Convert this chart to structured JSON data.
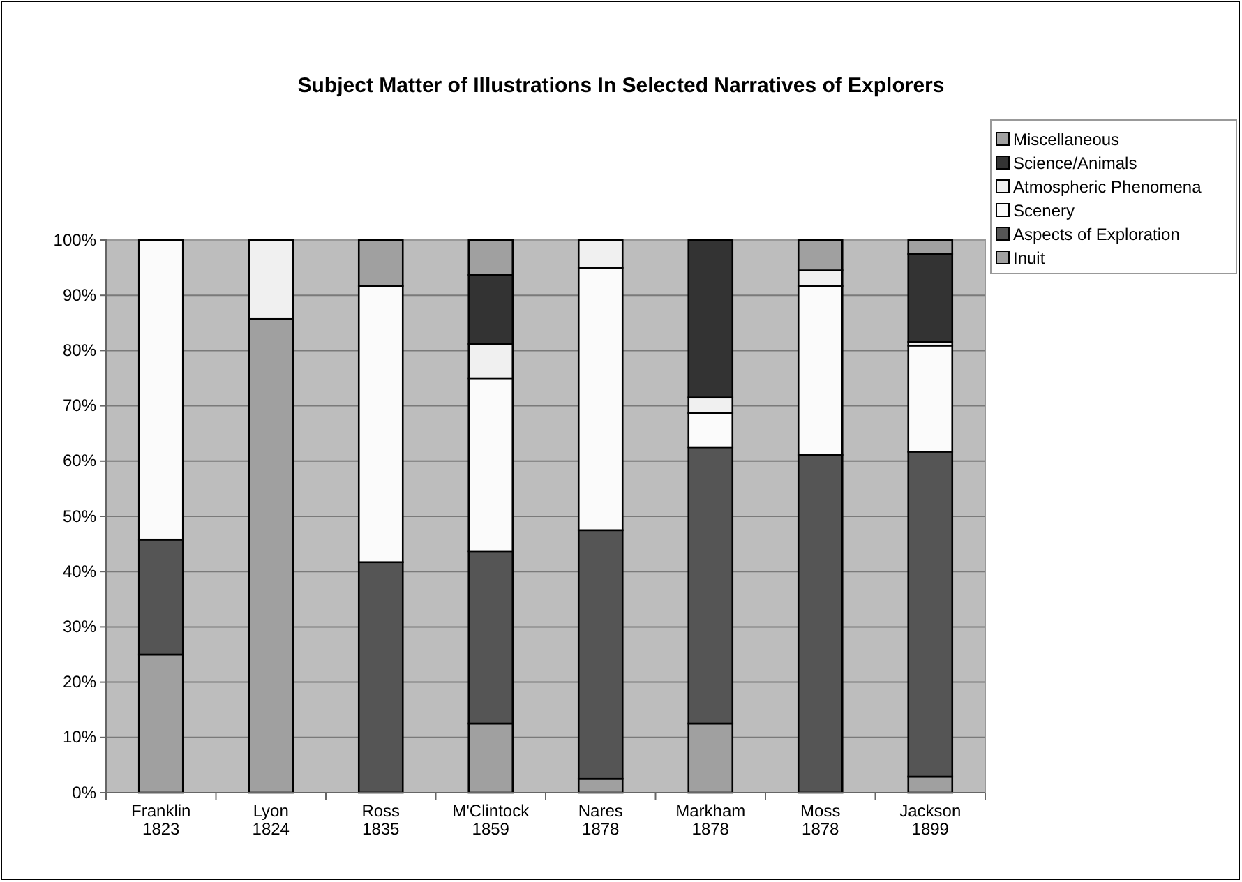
{
  "chart_data": {
    "type": "bar",
    "title": "Subject Matter of Illustrations In Selected Narratives of Explorers",
    "categories": [
      "Franklin\n1823",
      "Lyon\n1824",
      "Ross\n1835",
      "M'Clintock\n1859",
      "Nares\n1878",
      "Markham\n1878",
      "Moss\n1878",
      "Jackson\n1899"
    ],
    "stacked": true,
    "series": [
      {
        "name": "Inuit",
        "color": "#a0a0a0",
        "values": [
          25,
          85.7,
          0,
          12.5,
          2.5,
          12.5,
          0,
          2.9
        ]
      },
      {
        "name": "Aspects of Exploration",
        "color": "#555555",
        "values": [
          20.8,
          0,
          41.7,
          31.2,
          45,
          50,
          61.1,
          58.8
        ]
      },
      {
        "name": "Scenery",
        "color": "#fbfbfb",
        "values": [
          54.2,
          0,
          50,
          31.3,
          47.5,
          6.2,
          30.6,
          19.2
        ]
      },
      {
        "name": "Atmospheric Phenomena",
        "color": "#f0f0f0",
        "values": [
          0,
          14.3,
          0,
          6.2,
          5,
          2.8,
          2.8,
          0.7
        ]
      },
      {
        "name": "Science/Animals",
        "color": "#333333",
        "values": [
          0,
          0,
          0,
          12.5,
          0,
          28.5,
          0,
          15.9
        ]
      },
      {
        "name": "Miscellaneous",
        "color": "#a0a0a0",
        "values": [
          0,
          0,
          8.3,
          6.3,
          0,
          0,
          5.5,
          2.5
        ]
      }
    ],
    "ylim": [
      0,
      100
    ],
    "yticks": [
      {
        "value": 0,
        "label": "0%"
      },
      {
        "value": 10,
        "label": "10%"
      },
      {
        "value": 20,
        "label": "20%"
      },
      {
        "value": 30,
        "label": "30%"
      },
      {
        "value": 40,
        "label": "40%"
      },
      {
        "value": 50,
        "label": "50%"
      },
      {
        "value": 60,
        "label": "60%"
      },
      {
        "value": 70,
        "label": "70%"
      },
      {
        "value": 80,
        "label": "80%"
      },
      {
        "value": 90,
        "label": "90%"
      },
      {
        "value": 100,
        "label": "100%"
      }
    ],
    "grid": "y",
    "legend": "top right"
  }
}
